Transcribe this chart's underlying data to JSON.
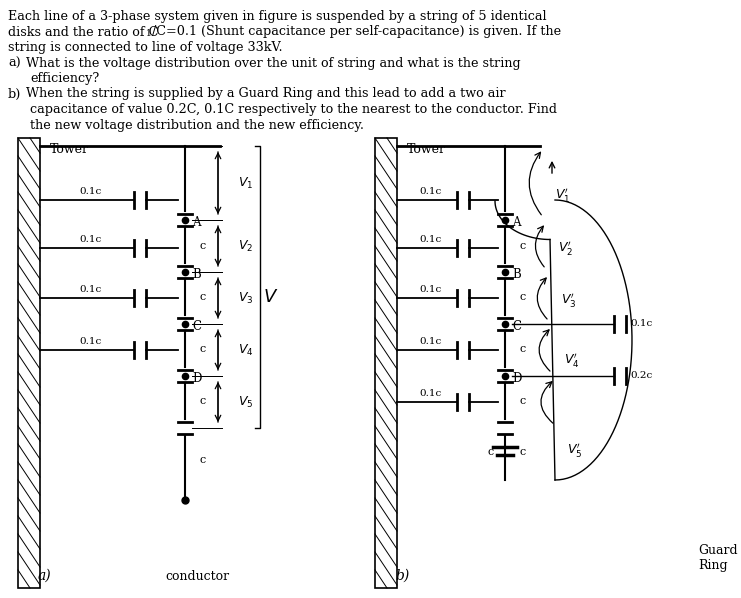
{
  "bg_color": "#ffffff",
  "tower_label_a": "Tower",
  "tower_label_b": "Tower",
  "fig_a_label": "a)",
  "fig_b_label": "b)",
  "conductor_label": "conductor",
  "guard_ring_label": "Guard\nRing",
  "text_lines": [
    "Each line of a 3-phase system given in figure is suspended by a string of 5 identical",
    "disks and the ratio of C",
    "/C=0.1 (Shunt capacitance per self-capacitance) is given. If the",
    "string is connected to line of voltage 33kV.",
    "What is the voltage distribution over the unit of string and what is the string",
    "efficiency?",
    "When the string is supplied by a Guard Ring and this lead to add a two air",
    "capacitance of value 0.2C, 0.1C respectively to the nearest to the conductor. Find",
    "the new voltage distribution and the new efficiency."
  ]
}
